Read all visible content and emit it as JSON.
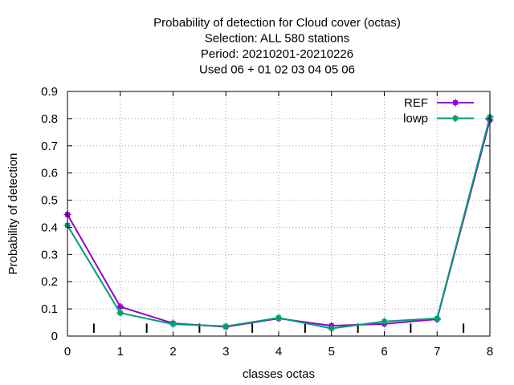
{
  "chart_data": {
    "type": "line",
    "title_lines": [
      "Probability of detection  for Cloud cover (octas)",
      "Selection: ALL    580 stations",
      "Period: 20210201-20210226",
      "Used  06  + 01 02 03 04 05 06"
    ],
    "xlabel": "classes octas",
    "ylabel": "Probability of detection",
    "x": [
      0,
      1,
      2,
      3,
      4,
      5,
      6,
      7,
      8
    ],
    "xlim": [
      0,
      8
    ],
    "ylim": [
      0,
      0.9
    ],
    "xticks": [
      "0",
      "1",
      "2",
      "3",
      "4",
      "5",
      "6",
      "7",
      "8"
    ],
    "yticks": [
      "0",
      "0.1",
      "0.2",
      "0.3",
      "0.4",
      "0.5",
      "0.6",
      "0.7",
      "0.8",
      "0.9"
    ],
    "grid": true,
    "legend_position": "top-right",
    "class_boundary_marks": [
      0.5,
      1.5,
      2.5,
      3.5,
      4.5,
      5.5,
      6.5,
      7.5
    ],
    "series": [
      {
        "name": "REF",
        "color": "#9400d3",
        "values": [
          0.447,
          0.108,
          0.047,
          0.034,
          0.065,
          0.038,
          0.045,
          0.062,
          0.795
        ]
      },
      {
        "name": "lowp",
        "color": "#009e73",
        "values": [
          0.407,
          0.085,
          0.044,
          0.036,
          0.067,
          0.028,
          0.054,
          0.065,
          0.806
        ]
      }
    ]
  }
}
